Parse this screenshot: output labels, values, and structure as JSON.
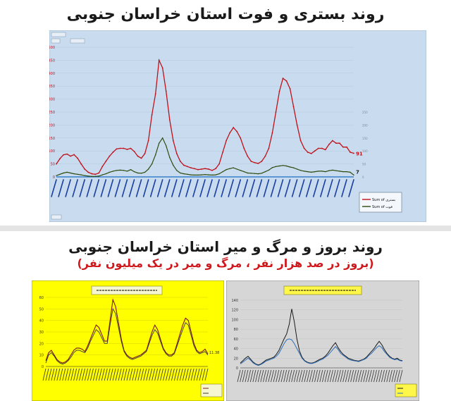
{
  "page": {
    "title_main": "روند بستری و فوت استان خراسان جنوبی",
    "title_second": "روند بروز و مرگ و میر استان خراسان جنوبی",
    "subtitle_second": "(بروز در صد هزار نفر ، مرگ و میر در یک میلیون نفر)"
  },
  "colors": {
    "chart1_bg": "#c9dcef",
    "hosp_line": "#c0101a",
    "death_line": "#2f4a0e",
    "chart2_bg": "#ffff00",
    "chart3_bg": "#d6d6d6",
    "chart3_line1": "#1a1a1a",
    "chart3_line2": "#2f6fb8"
  },
  "chart_data": [
    {
      "type": "line",
      "title": "",
      "ylim": [
        0,
        500
      ],
      "yticks": [
        "0",
        "50",
        "100",
        "150",
        "200",
        "250",
        "300",
        "350",
        "400",
        "450",
        "500"
      ],
      "y2ticks": [
        "0",
        "50",
        "100",
        "150",
        "200",
        "250"
      ],
      "legend": {
        "placement": "right",
        "entries": [
          "Sum of بستری",
          "Sum of فوت"
        ]
      },
      "end_labels": {
        "hosp": "91",
        "death": "7"
      },
      "series": [
        {
          "name": "بستری",
          "values": [
            50,
            70,
            85,
            88,
            80,
            86,
            72,
            50,
            30,
            18,
            12,
            10,
            15,
            40,
            60,
            80,
            95,
            108,
            110,
            110,
            106,
            110,
            98,
            80,
            72,
            90,
            140,
            240,
            320,
            450,
            420,
            330,
            220,
            140,
            90,
            60,
            45,
            40,
            35,
            32,
            28,
            30,
            32,
            30,
            25,
            32,
            50,
            95,
            140,
            170,
            190,
            175,
            150,
            110,
            80,
            60,
            55,
            52,
            60,
            80,
            110,
            170,
            250,
            330,
            380,
            370,
            340,
            270,
            200,
            140,
            110,
            95,
            90,
            100,
            110,
            110,
            105,
            125,
            140,
            130,
            130,
            115,
            115,
            95,
            91
          ]
        },
        {
          "name": "فوت",
          "values": [
            5,
            10,
            15,
            18,
            15,
            12,
            10,
            8,
            5,
            3,
            2,
            2,
            3,
            8,
            12,
            18,
            22,
            25,
            26,
            25,
            22,
            28,
            20,
            15,
            14,
            18,
            30,
            50,
            85,
            130,
            150,
            120,
            75,
            45,
            25,
            15,
            12,
            10,
            8,
            7,
            7,
            8,
            9,
            8,
            7,
            8,
            12,
            20,
            28,
            32,
            35,
            30,
            25,
            20,
            15,
            14,
            13,
            12,
            14,
            20,
            26,
            36,
            40,
            42,
            44,
            42,
            38,
            35,
            30,
            25,
            22,
            20,
            18,
            20,
            22,
            22,
            20,
            24,
            26,
            24,
            22,
            20,
            20,
            18,
            7
          ]
        }
      ]
    },
    {
      "type": "line",
      "title": "",
      "ylim": [
        0,
        60
      ],
      "yticks": [
        "0",
        "10",
        "20",
        "30",
        "40",
        "50",
        "60"
      ],
      "end_label": "11.38",
      "series": [
        {
          "values": [
            5,
            12,
            14,
            10,
            6,
            4,
            3,
            4,
            6,
            10,
            14,
            16,
            16,
            15,
            13,
            18,
            24,
            30,
            36,
            34,
            28,
            22,
            22,
            40,
            58,
            52,
            38,
            24,
            14,
            10,
            8,
            7,
            8,
            9,
            10,
            12,
            14,
            22,
            30,
            36,
            32,
            24,
            16,
            12,
            10,
            10,
            12,
            20,
            28,
            36,
            42,
            40,
            30,
            20,
            14,
            12,
            13,
            15,
            11
          ]
        },
        {
          "values": [
            3,
            10,
            12,
            9,
            5,
            3,
            2,
            3,
            5,
            8,
            12,
            14,
            14,
            13,
            12,
            16,
            22,
            27,
            32,
            30,
            25,
            20,
            20,
            36,
            50,
            46,
            34,
            22,
            13,
            9,
            7,
            6,
            7,
            8,
            9,
            11,
            13,
            20,
            27,
            32,
            29,
            22,
            15,
            11,
            9,
            9,
            11,
            18,
            25,
            32,
            38,
            36,
            27,
            18,
            13,
            11,
            12,
            13,
            10
          ]
        }
      ]
    },
    {
      "type": "line",
      "title": "",
      "ylim": [
        0,
        140
      ],
      "yticks": [
        "0",
        "20",
        "40",
        "60",
        "80",
        "100",
        "120",
        "140"
      ],
      "series": [
        {
          "values": [
            10,
            15,
            20,
            24,
            18,
            12,
            8,
            6,
            8,
            12,
            16,
            18,
            20,
            22,
            28,
            36,
            48,
            60,
            70,
            90,
            122,
            95,
            60,
            35,
            22,
            15,
            12,
            10,
            10,
            12,
            15,
            18,
            20,
            24,
            30,
            38,
            46,
            52,
            42,
            34,
            28,
            24,
            20,
            18,
            16,
            15,
            14,
            16,
            18,
            22,
            28,
            34,
            40,
            48,
            55,
            48,
            38,
            30,
            24,
            20,
            18,
            20,
            16,
            15
          ]
        },
        {
          "values": [
            8,
            12,
            16,
            20,
            16,
            10,
            7,
            5,
            7,
            10,
            14,
            16,
            18,
            20,
            24,
            30,
            40,
            50,
            58,
            60,
            58,
            50,
            40,
            30,
            20,
            14,
            11,
            9,
            9,
            11,
            13,
            16,
            18,
            22,
            26,
            32,
            38,
            44,
            38,
            30,
            26,
            22,
            18,
            16,
            15,
            14,
            13,
            15,
            17,
            20,
            26,
            30,
            36,
            42,
            46,
            42,
            34,
            28,
            22,
            19,
            17,
            18,
            15,
            14
          ]
        }
      ]
    }
  ]
}
